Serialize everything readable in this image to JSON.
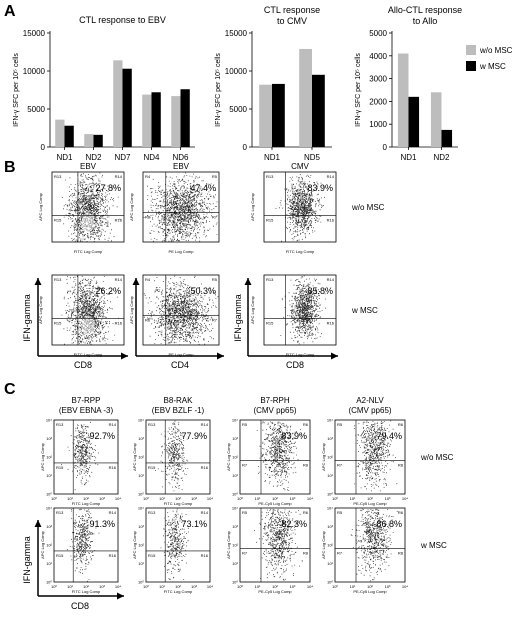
{
  "panels": {
    "a": "A",
    "b": "B",
    "c": "C"
  },
  "colors": {
    "without_msc": "#bdbdbd",
    "with_msc": "#000000"
  },
  "legend": {
    "without": "w/o MSC",
    "with": "w MSC"
  },
  "chart_data": [
    {
      "type": "bar",
      "title": "CTL response to EBV",
      "ylabel": "IFN-γ SFC per 10⁵ cells",
      "ylim": [
        0,
        15000
      ],
      "yticks": [
        "0",
        "5000",
        "10000",
        "15000"
      ],
      "categories": [
        "ND1",
        "ND2",
        "ND7",
        "ND4",
        "ND6"
      ],
      "series": [
        {
          "name": "w/o MSC",
          "values": [
            3600,
            1700,
            11400,
            6900,
            6700
          ]
        },
        {
          "name": "w MSC",
          "values": [
            2800,
            1600,
            10300,
            7200,
            7600
          ]
        }
      ]
    },
    {
      "type": "bar",
      "title": "CTL response to CMV",
      "ylabel": "IFN-γ SFC per 10⁵ cells",
      "ylim": [
        0,
        15000
      ],
      "yticks": [
        "0",
        "5000",
        "10000",
        "15000"
      ],
      "categories": [
        "ND1",
        "ND5"
      ],
      "series": [
        {
          "name": "w/o MSC",
          "values": [
            8200,
            12900
          ]
        },
        {
          "name": "w MSC",
          "values": [
            8300,
            9500
          ]
        }
      ]
    },
    {
      "type": "bar",
      "title": "Allo-CTL response to Allo",
      "ylabel": "IFN-γ SFC per 10⁵ cells",
      "ylim": [
        0,
        5000
      ],
      "yticks": [
        "0",
        "1000",
        "2000",
        "3000",
        "4000",
        "5000"
      ],
      "categories": [
        "ND1",
        "ND2"
      ],
      "series": [
        {
          "name": "w/o MSC",
          "values": [
            4100,
            2400
          ]
        },
        {
          "name": "w MSC",
          "values": [
            2200,
            750
          ]
        }
      ],
      "legend_position": "right"
    }
  ],
  "flow_b": {
    "headers": [
      "EBV",
      "EBV",
      "CMV"
    ],
    "row_labels": [
      "w/o MSC",
      "w MSC"
    ],
    "y_axis_label": "IFN-gamma",
    "x_axis_labels": [
      "CD8",
      "CD4",
      "CD8"
    ],
    "plots": [
      {
        "percent": "27.8%",
        "q": [
          "R13",
          "R14",
          "R15",
          "R16"
        ],
        "xlab": "FITC Log Comp",
        "ylab": "APC Log Comp"
      },
      {
        "percent": "47.4%",
        "q": [
          "R4",
          "R5",
          "R6",
          "R7"
        ],
        "xlab": "PE Log Comp",
        "ylab": "APC Log Comp"
      },
      {
        "percent": "83.9%",
        "q": [
          "R13",
          "R14",
          "R15",
          "R16"
        ],
        "xlab": "FITC Log Comp",
        "ylab": "APC Log Comp"
      },
      {
        "percent": "26.2%",
        "q": [
          "R13",
          "R14",
          "R15",
          "R16"
        ],
        "xlab": "FITC Log Comp",
        "ylab": "APC Log Comp"
      },
      {
        "percent": "50.3%",
        "q": [
          "R4",
          "R5",
          "R6",
          "R7"
        ],
        "xlab": "PE Log Comp",
        "ylab": "APC Log Comp"
      },
      {
        "percent": "85.8%",
        "q": [
          "R13",
          "R14",
          "R15",
          "R16"
        ],
        "xlab": "FITC Log Comp",
        "ylab": "APC Log Comp"
      }
    ]
  },
  "flow_c": {
    "headers": [
      [
        "B7-RPP",
        "(EBV EBNA -3)"
      ],
      [
        "B8-RAK",
        "(EBV BZLF -1)"
      ],
      [
        "B7-RPH",
        "(CMV pp65)"
      ],
      [
        "A2-NLV",
        "(CMV pp65)"
      ]
    ],
    "row_labels": [
      "w/o MSC",
      "w MSC"
    ],
    "y_axis_label": "IFN-gamma",
    "x_axis_label": "CD8",
    "plots": [
      {
        "percent": "92.7%",
        "q": [
          "R13",
          "R14",
          "R15",
          "R16"
        ],
        "xlab": "FITC Log Comp",
        "ylab": "APC Log Comp"
      },
      {
        "percent": "77.9%",
        "q": [
          "R13",
          "R14",
          "R15",
          "R16"
        ],
        "xlab": "FITC Log Comp",
        "ylab": "APC Log Comp"
      },
      {
        "percent": "83.9%",
        "q": [
          "R5",
          "R6",
          "R7",
          "R8"
        ],
        "xlab": "PE-Cy5 Log Comp",
        "ylab": "APC Log Comp"
      },
      {
        "percent": "79.4%",
        "q": [
          "R5",
          "R6",
          "R7",
          "R8"
        ],
        "xlab": "PE-Cy5 Log Comp",
        "ylab": "APC Log Comp"
      },
      {
        "percent": "91.3%",
        "q": [
          "R13",
          "R14",
          "R15",
          "R16"
        ],
        "xlab": "FITC Log Comp",
        "ylab": "APC Log Comp"
      },
      {
        "percent": "73.1%",
        "q": [
          "R13",
          "R14",
          "R15",
          "R16"
        ],
        "xlab": "FITC Log Comp",
        "ylab": "APC Log Comp"
      },
      {
        "percent": "82.3%",
        "q": [
          "R5",
          "R6",
          "R7",
          "R8"
        ],
        "xlab": "PE-Cy5 Log Comp",
        "ylab": "APC Log Comp"
      },
      {
        "percent": "86.8%",
        "q": [
          "R5",
          "R6",
          "R7",
          "R8"
        ],
        "xlab": "PE-Cy5 Log Comp",
        "ylab": "APC Log Comp"
      }
    ],
    "decade_ticks": [
      "10⁰",
      "10¹",
      "10²",
      "10³",
      "10⁴"
    ]
  }
}
